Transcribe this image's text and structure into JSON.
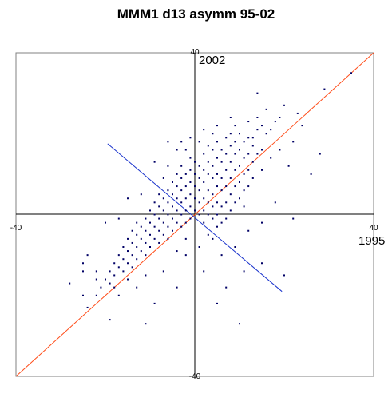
{
  "chart_data": {
    "type": "scatter",
    "title": "MMM1 d13 asymm 95-02",
    "xlabel": "1995",
    "ylabel": "2002",
    "xlim": [
      -40,
      40
    ],
    "ylim": [
      -40,
      40
    ],
    "x_tick_labels": [
      "-40",
      "40"
    ],
    "y_tick_labels": [
      "40",
      "-40"
    ],
    "grid": false,
    "frame": true,
    "colors": {
      "points": "#000066",
      "identity_line": "#ff4d1a",
      "orthogonal_line": "#1a33cc"
    },
    "lines": [
      {
        "kind": "identity",
        "x": [
          -40,
          40
        ],
        "y": [
          -40,
          40
        ]
      },
      {
        "kind": "orthogonal",
        "x": [
          -19.5,
          19.5
        ],
        "y": [
          17.5,
          -19
        ]
      }
    ],
    "points": [
      [
        35,
        35
      ],
      [
        29,
        31
      ],
      [
        26,
        10
      ],
      [
        23,
        25
      ],
      [
        21,
        12
      ],
      [
        20,
        27
      ],
      [
        19,
        24
      ],
      [
        18,
        23
      ],
      [
        17,
        21
      ],
      [
        17,
        14
      ],
      [
        16,
        26
      ],
      [
        16,
        20
      ],
      [
        15,
        22
      ],
      [
        15,
        16
      ],
      [
        15,
        11
      ],
      [
        14,
        24
      ],
      [
        14,
        21
      ],
      [
        14,
        15
      ],
      [
        13,
        19
      ],
      [
        13,
        17
      ],
      [
        13,
        13
      ],
      [
        13,
        9
      ],
      [
        12,
        23
      ],
      [
        12,
        19
      ],
      [
        12,
        15
      ],
      [
        12,
        11
      ],
      [
        12,
        7
      ],
      [
        11,
        18
      ],
      [
        11,
        14
      ],
      [
        11,
        10
      ],
      [
        11,
        6
      ],
      [
        11,
        2
      ],
      [
        10,
        20
      ],
      [
        10,
        16
      ],
      [
        10,
        12
      ],
      [
        10,
        8
      ],
      [
        10,
        4
      ],
      [
        9,
        22
      ],
      [
        9,
        18
      ],
      [
        9,
        15
      ],
      [
        9,
        11
      ],
      [
        9,
        7
      ],
      [
        9,
        3
      ],
      [
        8,
        24
      ],
      [
        8,
        20
      ],
      [
        8,
        17
      ],
      [
        8,
        13
      ],
      [
        8,
        9
      ],
      [
        8,
        5
      ],
      [
        8,
        1
      ],
      [
        7,
        19
      ],
      [
        7,
        15
      ],
      [
        7,
        11
      ],
      [
        7,
        7
      ],
      [
        7,
        3
      ],
      [
        7,
        -1
      ],
      [
        6,
        16
      ],
      [
        6,
        13
      ],
      [
        6,
        9
      ],
      [
        6,
        6
      ],
      [
        6,
        2
      ],
      [
        6,
        -2
      ],
      [
        5,
        22
      ],
      [
        5,
        18
      ],
      [
        5,
        14
      ],
      [
        5,
        10
      ],
      [
        5,
        7
      ],
      [
        5,
        3
      ],
      [
        5,
        0
      ],
      [
        4,
        20
      ],
      [
        4,
        16
      ],
      [
        4,
        12
      ],
      [
        4,
        9
      ],
      [
        4,
        5
      ],
      [
        4,
        2
      ],
      [
        4,
        -1
      ],
      [
        3,
        17
      ],
      [
        3,
        13
      ],
      [
        3,
        10
      ],
      [
        3,
        6
      ],
      [
        3,
        3
      ],
      [
        3,
        0
      ],
      [
        2,
        21
      ],
      [
        2,
        15
      ],
      [
        2,
        11
      ],
      [
        2,
        8
      ],
      [
        2,
        4
      ],
      [
        2,
        1
      ],
      [
        2,
        -2
      ],
      [
        1,
        18
      ],
      [
        1,
        12
      ],
      [
        1,
        9
      ],
      [
        1,
        6
      ],
      [
        1,
        3
      ],
      [
        1,
        0
      ],
      [
        0,
        13
      ],
      [
        0,
        10
      ],
      [
        0,
        7
      ],
      [
        0,
        4
      ],
      [
        0,
        1
      ],
      [
        -1,
        14
      ],
      [
        -1,
        11
      ],
      [
        -1,
        8
      ],
      [
        -1,
        5
      ],
      [
        -1,
        2
      ],
      [
        -1,
        -1
      ],
      [
        -2,
        16
      ],
      [
        -2,
        10
      ],
      [
        -2,
        7
      ],
      [
        -2,
        4
      ],
      [
        -2,
        1
      ],
      [
        -2,
        -2
      ],
      [
        -3,
        12
      ],
      [
        -3,
        9
      ],
      [
        -3,
        6
      ],
      [
        -3,
        3
      ],
      [
        -3,
        0
      ],
      [
        -3,
        -3
      ],
      [
        -4,
        10
      ],
      [
        -4,
        7
      ],
      [
        -4,
        4
      ],
      [
        -4,
        1
      ],
      [
        -4,
        -2
      ],
      [
        -5,
        8
      ],
      [
        -5,
        5
      ],
      [
        -5,
        2
      ],
      [
        -5,
        -1
      ],
      [
        -5,
        -4
      ],
      [
        -6,
        6
      ],
      [
        -6,
        3
      ],
      [
        -6,
        0
      ],
      [
        -6,
        -3
      ],
      [
        -6,
        -6
      ],
      [
        -7,
        4
      ],
      [
        -7,
        1
      ],
      [
        -7,
        -2
      ],
      [
        -7,
        -5
      ],
      [
        -8,
        5
      ],
      [
        -8,
        2
      ],
      [
        -8,
        -1
      ],
      [
        -8,
        -4
      ],
      [
        -8,
        -7
      ],
      [
        -9,
        3
      ],
      [
        -9,
        0
      ],
      [
        -9,
        -3
      ],
      [
        -9,
        -6
      ],
      [
        -10,
        1
      ],
      [
        -10,
        -2
      ],
      [
        -10,
        -5
      ],
      [
        -10,
        -8
      ],
      [
        -11,
        -1
      ],
      [
        -11,
        -4
      ],
      [
        -11,
        -7
      ],
      [
        -11,
        -10
      ],
      [
        -12,
        -3
      ],
      [
        -12,
        -6
      ],
      [
        -12,
        -9
      ],
      [
        -13,
        -2
      ],
      [
        -13,
        -5
      ],
      [
        -13,
        -8
      ],
      [
        -13,
        -11
      ],
      [
        -14,
        -4
      ],
      [
        -14,
        -7
      ],
      [
        -14,
        -10
      ],
      [
        -14,
        -13
      ],
      [
        -15,
        -6
      ],
      [
        -15,
        -9
      ],
      [
        -15,
        -12
      ],
      [
        -16,
        -8
      ],
      [
        -16,
        -11
      ],
      [
        -16,
        -14
      ],
      [
        -17,
        -10
      ],
      [
        -17,
        -13
      ],
      [
        -18,
        -12
      ],
      [
        -18,
        -15
      ],
      [
        -19,
        -14
      ],
      [
        -19,
        -17
      ],
      [
        -20,
        -16
      ],
      [
        -21,
        -18
      ],
      [
        -22,
        -20
      ],
      [
        -24,
        -23
      ],
      [
        -25,
        -12
      ],
      [
        -25,
        -20
      ],
      [
        -19,
        -26
      ],
      [
        -11,
        -27
      ],
      [
        -6,
        12
      ],
      [
        -4,
        16
      ],
      [
        -7,
        9
      ],
      [
        -9,
        13
      ],
      [
        -1,
        19
      ],
      [
        -3,
        18
      ],
      [
        -6,
        18
      ],
      [
        -12,
        5
      ],
      [
        -15,
        4
      ],
      [
        -17,
        -1
      ],
      [
        -20,
        -2
      ],
      [
        -24,
        -10
      ],
      [
        -22,
        -16
      ],
      [
        -17,
        -20
      ],
      [
        -13,
        -18
      ],
      [
        -9,
        -22
      ],
      [
        -4,
        -18
      ],
      [
        -7,
        -14
      ],
      [
        -2,
        -10
      ],
      [
        1,
        -8
      ],
      [
        2,
        -14
      ],
      [
        5,
        -22
      ],
      [
        7,
        -18
      ],
      [
        10,
        -27
      ],
      [
        11,
        -14
      ],
      [
        15,
        -12
      ],
      [
        20,
        -15
      ],
      [
        22,
        -1
      ],
      [
        18,
        3
      ],
      [
        15,
        -2
      ],
      [
        12,
        -4
      ],
      [
        9,
        -8
      ],
      [
        6,
        -10
      ],
      [
        4,
        -6
      ],
      [
        19,
        16
      ],
      [
        22,
        18
      ],
      [
        24,
        22
      ],
      [
        28,
        15
      ],
      [
        14,
        30
      ],
      [
        -4,
        -9
      ],
      [
        -2,
        -6
      ],
      [
        3,
        -5
      ],
      [
        5,
        -3
      ],
      [
        -11,
        -15
      ],
      [
        -15,
        -16
      ],
      [
        -22,
        -14
      ],
      [
        -28,
        -17
      ],
      [
        -25,
        -14
      ],
      [
        -18,
        -18
      ]
    ]
  }
}
